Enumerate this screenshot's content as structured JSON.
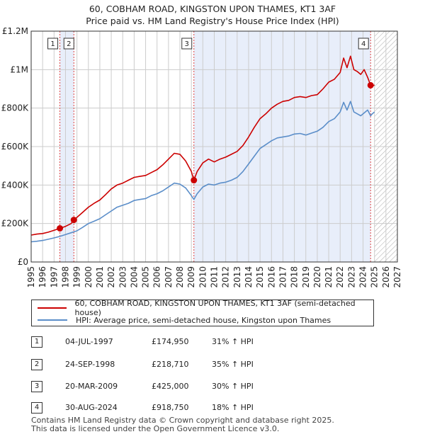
{
  "title": {
    "line1": "60, COBHAM ROAD, KINGSTON UPON THAMES, KT1 3AF",
    "line2": "Price paid vs. HM Land Registry's House Price Index (HPI)"
  },
  "legend": {
    "property_label": "60, COBHAM ROAD, KINGSTON UPON THAMES, KT1 3AF (semi-detached house)",
    "hpi_label": "HPI: Average price, semi-detached house, Kingston upon Thames"
  },
  "colors": {
    "property": "#cc0000",
    "hpi": "#5b8ec9",
    "shade": "#e8eefa",
    "grid": "#cccccc",
    "marker_line": "#dd4444"
  },
  "transactions": [
    {
      "num": "1",
      "date": "04-JUL-1997",
      "price": "£174,950",
      "delta": "31% ↑ HPI"
    },
    {
      "num": "2",
      "date": "24-SEP-1998",
      "price": "£218,710",
      "delta": "35% ↑ HPI"
    },
    {
      "num": "3",
      "date": "20-MAR-2009",
      "price": "£425,000",
      "delta": "30% ↑ HPI"
    },
    {
      "num": "4",
      "date": "30-AUG-2024",
      "price": "£918,750",
      "delta": "18% ↑ HPI"
    }
  ],
  "footer": {
    "line1": "Contains HM Land Registry data © Crown copyright and database right 2025.",
    "line2": "This data is licensed under the Open Government Licence v3.0."
  },
  "chart_data": {
    "type": "line",
    "title": "60, COBHAM ROAD, KINGSTON UPON THAMES, KT1 3AF — Price paid vs. HM Land Registry's House Price Index (HPI)",
    "xlabel": "",
    "ylabel": "",
    "xlim": [
      1995,
      2027
    ],
    "ylim": [
      0,
      1200000
    ],
    "x_ticks": [
      1995,
      1996,
      1997,
      1998,
      1999,
      2000,
      2001,
      2002,
      2003,
      2004,
      2005,
      2006,
      2007,
      2008,
      2009,
      2010,
      2011,
      2012,
      2013,
      2014,
      2015,
      2016,
      2017,
      2018,
      2019,
      2020,
      2021,
      2022,
      2023,
      2024,
      2025,
      2026,
      2027
    ],
    "y_ticks": [
      0,
      200000,
      400000,
      600000,
      800000,
      1000000,
      1200000
    ],
    "y_tick_labels": [
      "£0",
      "£200K",
      "£400K",
      "£600K",
      "£800K",
      "£1M",
      "£1.2M"
    ],
    "grid": true,
    "shaded_spans": [
      [
        1997.5,
        1998.73
      ],
      [
        2009.22,
        2024.66
      ]
    ],
    "hatched_from": 2025.0,
    "series": [
      {
        "name": "60, COBHAM ROAD, KINGSTON UPON THAMES, KT1 3AF (semi-detached house)",
        "x": [
          1995.0,
          1995.5,
          1996.0,
          1996.5,
          1997.0,
          1997.5,
          1998.0,
          1998.5,
          1998.73,
          1999.0,
          1999.5,
          2000.0,
          2000.5,
          2001.0,
          2001.5,
          2002.0,
          2002.5,
          2003.0,
          2003.5,
          2004.0,
          2004.5,
          2005.0,
          2005.5,
          2006.0,
          2006.5,
          2007.0,
          2007.5,
          2008.0,
          2008.5,
          2009.0,
          2009.22,
          2009.5,
          2010.0,
          2010.5,
          2011.0,
          2011.5,
          2012.0,
          2012.5,
          2013.0,
          2013.5,
          2014.0,
          2014.5,
          2015.0,
          2015.5,
          2016.0,
          2016.5,
          2017.0,
          2017.5,
          2018.0,
          2018.5,
          2019.0,
          2019.5,
          2020.0,
          2020.5,
          2021.0,
          2021.5,
          2022.0,
          2022.3,
          2022.6,
          2022.9,
          2023.2,
          2023.5,
          2023.8,
          2024.1,
          2024.4,
          2024.66,
          2024.8,
          2025.0
        ],
        "values": [
          140000,
          145000,
          148000,
          155000,
          165000,
          174950,
          185000,
          200000,
          218710,
          232000,
          258000,
          285000,
          305000,
          322000,
          350000,
          380000,
          400000,
          410000,
          425000,
          440000,
          445000,
          450000,
          465000,
          480000,
          505000,
          535000,
          565000,
          560000,
          525000,
          470000,
          425000,
          470000,
          515000,
          535000,
          520000,
          535000,
          545000,
          560000,
          575000,
          605000,
          650000,
          700000,
          745000,
          770000,
          800000,
          820000,
          835000,
          840000,
          855000,
          860000,
          855000,
          865000,
          870000,
          900000,
          935000,
          950000,
          985000,
          1060000,
          1010000,
          1070000,
          1000000,
          990000,
          975000,
          1000000,
          960000,
          918750,
          915000,
          920000
        ]
      },
      {
        "name": "HPI: Average price, semi-detached house, Kingston upon Thames",
        "x": [
          1995.0,
          1995.5,
          1996.0,
          1996.5,
          1997.0,
          1997.5,
          1998.0,
          1998.5,
          1999.0,
          1999.5,
          2000.0,
          2000.5,
          2001.0,
          2001.5,
          2002.0,
          2002.5,
          2003.0,
          2003.5,
          2004.0,
          2004.5,
          2005.0,
          2005.5,
          2006.0,
          2006.5,
          2007.0,
          2007.5,
          2008.0,
          2008.5,
          2009.0,
          2009.22,
          2009.5,
          2010.0,
          2010.5,
          2011.0,
          2011.5,
          2012.0,
          2012.5,
          2013.0,
          2013.5,
          2014.0,
          2014.5,
          2015.0,
          2015.5,
          2016.0,
          2016.5,
          2017.0,
          2017.5,
          2018.0,
          2018.5,
          2019.0,
          2019.5,
          2020.0,
          2020.5,
          2021.0,
          2021.5,
          2022.0,
          2022.3,
          2022.6,
          2022.9,
          2023.2,
          2023.5,
          2023.8,
          2024.1,
          2024.4,
          2024.66,
          2024.8,
          2025.0
        ],
        "values": [
          105000,
          108000,
          112000,
          118000,
          125000,
          133000,
          143000,
          152000,
          162000,
          180000,
          200000,
          212000,
          225000,
          245000,
          265000,
          285000,
          295000,
          305000,
          320000,
          325000,
          330000,
          345000,
          355000,
          370000,
          390000,
          410000,
          405000,
          385000,
          345000,
          325000,
          355000,
          390000,
          405000,
          400000,
          410000,
          415000,
          425000,
          440000,
          470000,
          510000,
          550000,
          590000,
          610000,
          630000,
          645000,
          650000,
          655000,
          665000,
          668000,
          660000,
          670000,
          680000,
          700000,
          730000,
          745000,
          780000,
          830000,
          790000,
          835000,
          780000,
          770000,
          760000,
          775000,
          790000,
          760000,
          770000,
          780000
        ]
      }
    ],
    "sale_points": [
      {
        "label": "1",
        "x": 1997.51,
        "y": 174950
      },
      {
        "label": "2",
        "x": 1998.73,
        "y": 218710
      },
      {
        "label": "3",
        "x": 2009.22,
        "y": 425000
      },
      {
        "label": "4",
        "x": 2024.66,
        "y": 918750
      }
    ]
  }
}
